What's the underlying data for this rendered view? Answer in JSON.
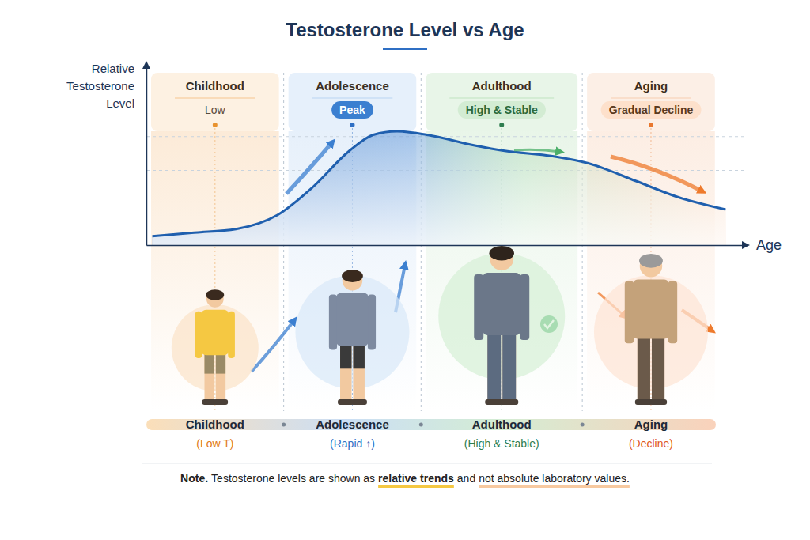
{
  "chart_data": {
    "type": "area",
    "title": "Testosterone Level vs Age",
    "x_label": "Age",
    "y_label": "Relative Testosterone Level",
    "x": [
      1,
      8,
      15,
      22,
      28,
      34,
      38,
      42,
      47,
      55,
      60,
      68,
      74,
      82,
      89,
      97
    ],
    "values": [
      5,
      7,
      9,
      17,
      33,
      53,
      62,
      64,
      62,
      56,
      53,
      50,
      46,
      36,
      27,
      20
    ],
    "color": "#1f5fae",
    "xlim": [
      0,
      100
    ],
    "ylim": [
      0,
      100
    ],
    "yticks": [
      42,
      61
    ],
    "grid": true,
    "tick_labels": false,
    "stages": [
      {
        "label": "Childhood",
        "level": "Low",
        "caption": "(Low T)",
        "start": 0,
        "end": 23
      },
      {
        "label": "Adolescence",
        "level": "Peak",
        "caption": "(Rapid ↑)",
        "start": 23,
        "end": 46
      },
      {
        "label": "Adulthood",
        "level": "High & Stable",
        "caption": "(High & Stable)",
        "start": 46,
        "end": 73
      },
      {
        "label": "Aging",
        "level": "Gradual Decline",
        "caption": "(Decline)",
        "start": 73,
        "end": 96
      }
    ],
    "note": [
      "Note.",
      "Testosterone levels are shown as",
      "relative trends",
      "and",
      "not absolute laboratory values."
    ]
  }
}
